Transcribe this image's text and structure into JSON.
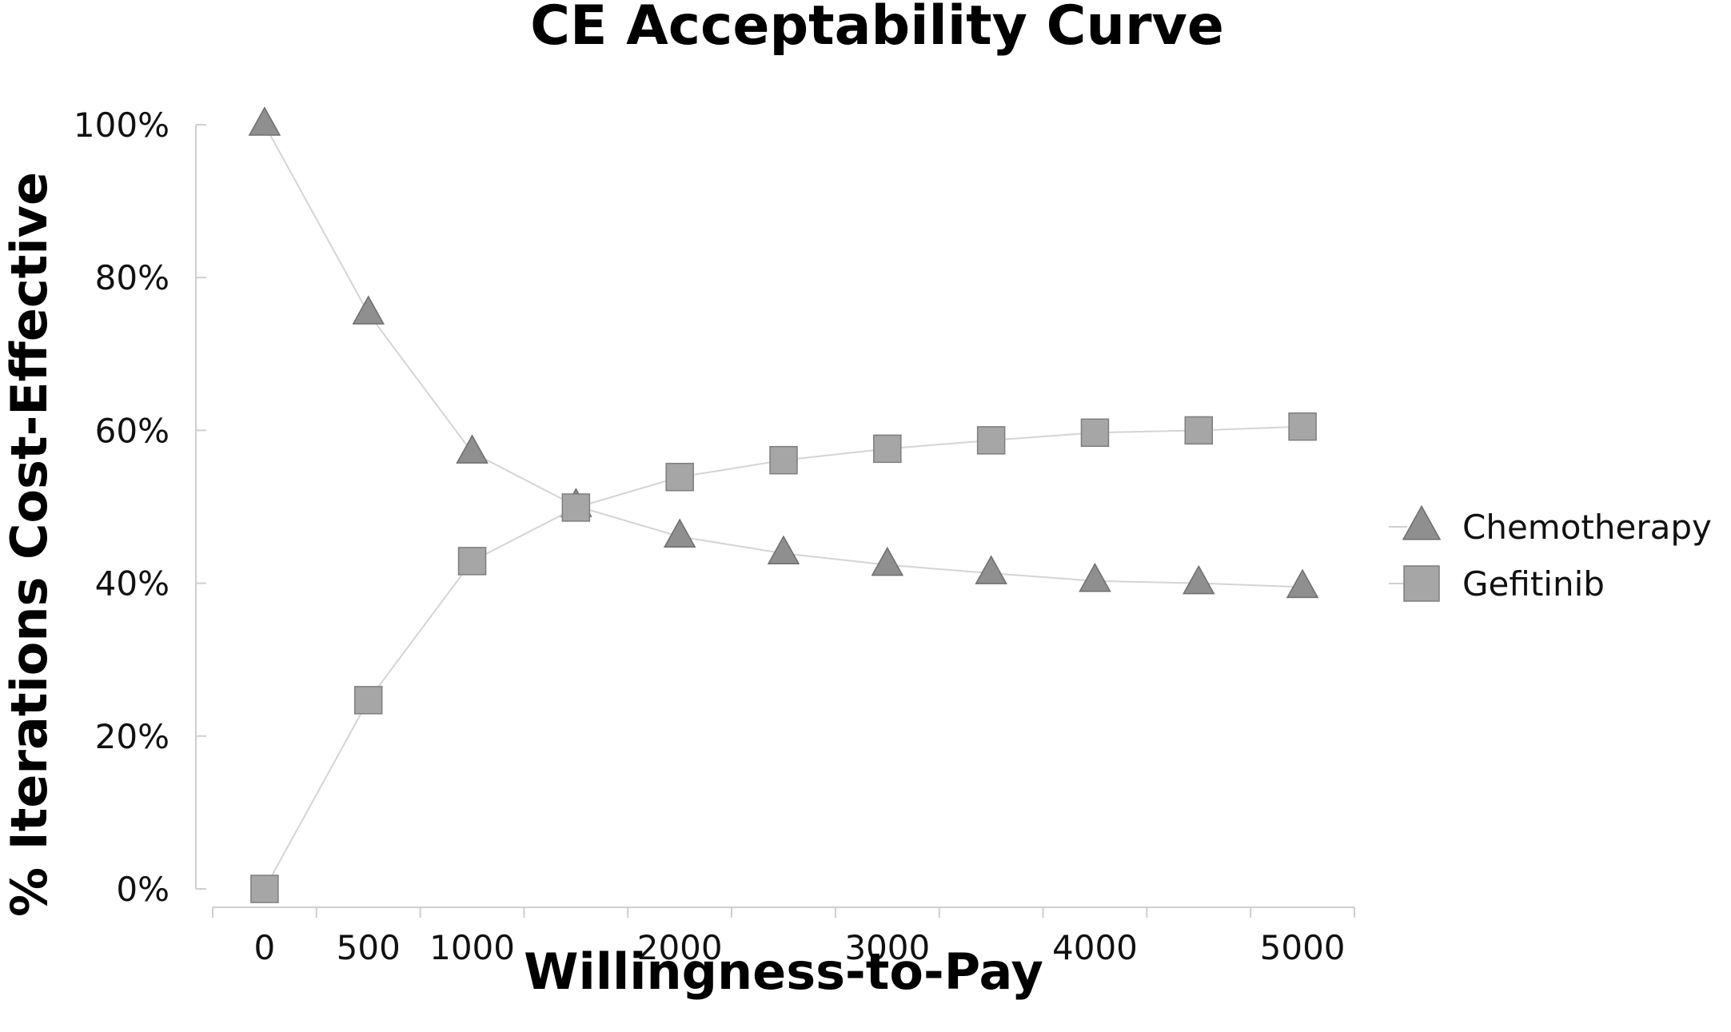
{
  "chart_data": {
    "type": "line",
    "title": "CE Acceptability Curve",
    "xlabel": "Willingness-to-Pay",
    "ylabel": "% Iterations Cost-Effective",
    "x": [
      0,
      500,
      1000,
      1500,
      2000,
      2500,
      3000,
      3500,
      4000,
      4500,
      5000
    ],
    "x_tick_labels": [
      "0",
      "500",
      "1000",
      "2000",
      "3000",
      "4000",
      "5000"
    ],
    "x_tick_values": [
      0,
      500,
      1000,
      2000,
      3000,
      4000,
      5000
    ],
    "y_tick_labels": [
      "0%",
      "20%",
      "40%",
      "60%",
      "80%",
      "100%"
    ],
    "y_tick_values": [
      0,
      20,
      40,
      60,
      80,
      100
    ],
    "xlim": [
      -250,
      5250
    ],
    "ylim": [
      0,
      100
    ],
    "grid": false,
    "legend_position": "right",
    "series": [
      {
        "name": "Chemotherapy",
        "marker": "triangle",
        "color": "#8f8f8f",
        "values": [
          100,
          75.3,
          57.1,
          50.1,
          46.1,
          43.9,
          42.4,
          41.3,
          40.3,
          40.0,
          39.5
        ]
      },
      {
        "name": "Gefitinib",
        "marker": "square",
        "color": "#a6a6a6",
        "values": [
          0,
          24.7,
          42.9,
          49.9,
          53.9,
          56.1,
          57.6,
          58.7,
          59.7,
          60.0,
          60.5
        ]
      }
    ]
  }
}
